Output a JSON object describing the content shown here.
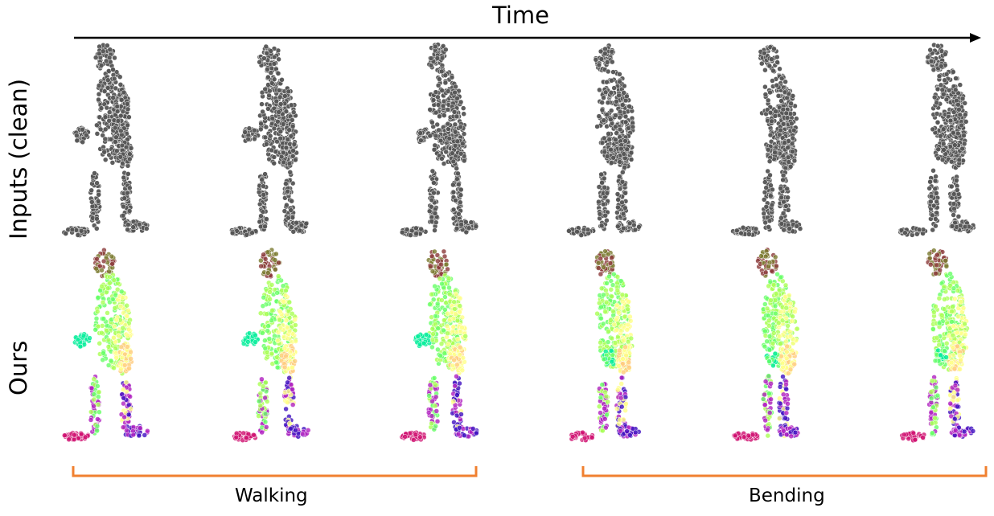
{
  "axis": {
    "label": "Time",
    "arrow_color": "#000000"
  },
  "rows": [
    {
      "label": "Inputs (clean)",
      "point_color": "#555555"
    },
    {
      "label": "Ours",
      "palette": [
        "#8b3a3a",
        "#7a7a30",
        "#66ff66",
        "#aaff55",
        "#ffff88",
        "#00ee99",
        "#ffcc80",
        "#b020c0",
        "#d01070",
        "#4010c0"
      ]
    }
  ],
  "groups": [
    {
      "label": "Walking",
      "bracket_color": "#f08030"
    },
    {
      "label": "Bending",
      "bracket_color": "#f08030"
    }
  ]
}
